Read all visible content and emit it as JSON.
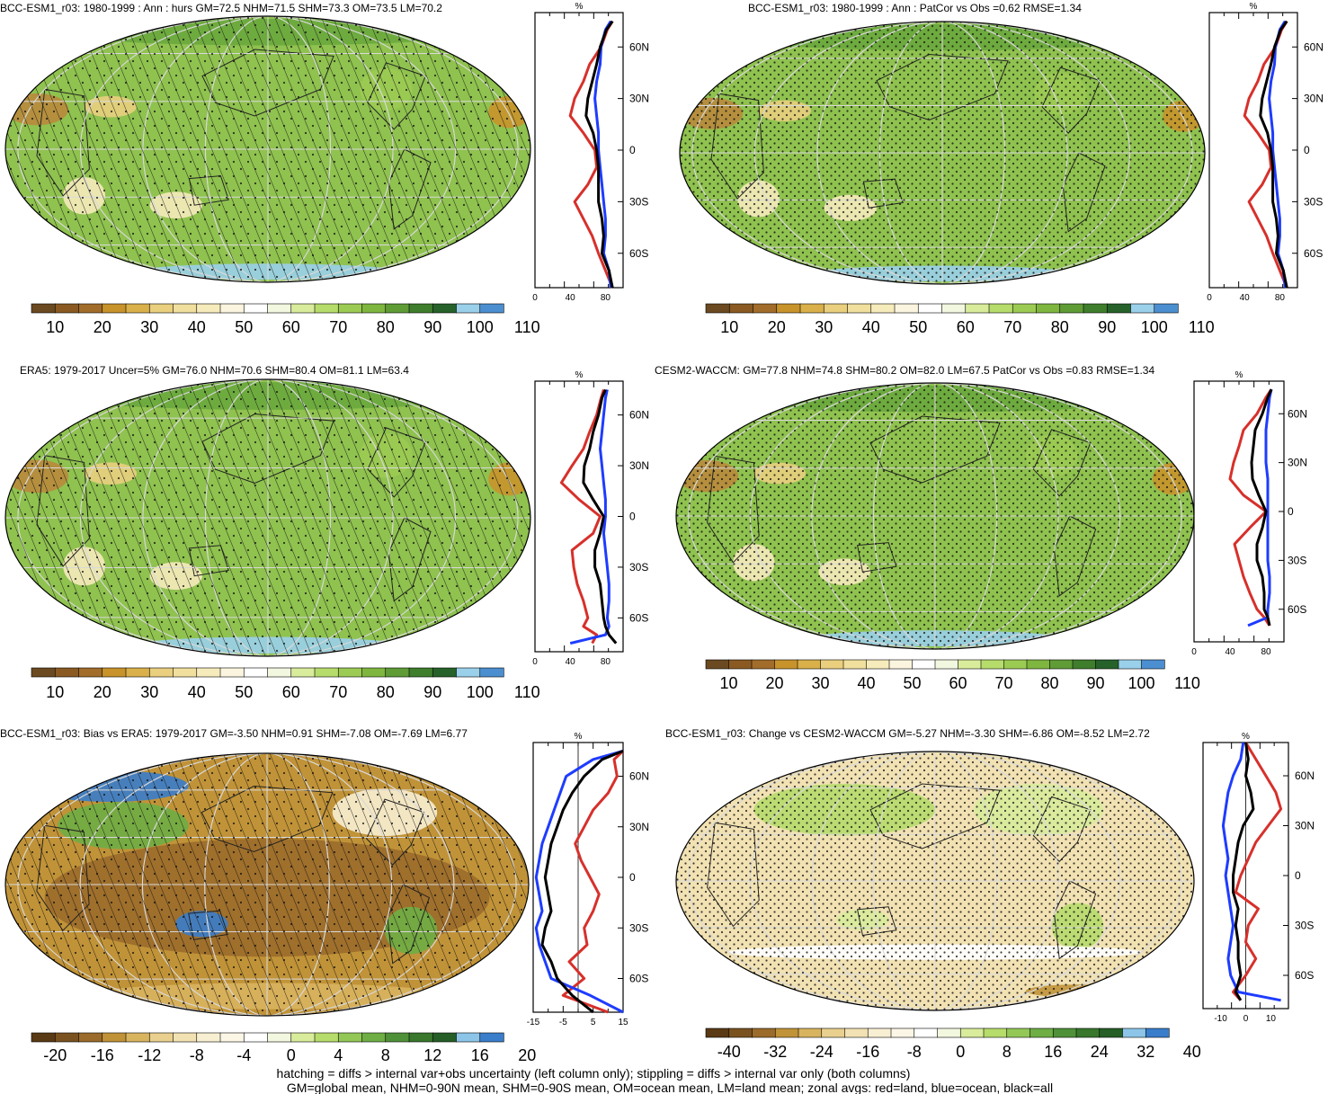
{
  "colors": {
    "land": "#d7302b",
    "ocean": "#1e3cff",
    "all": "#000000",
    "hatch": "#111111",
    "grid": "#d9d9d9",
    "scale_mean": [
      "#6b4a21",
      "#8a5a22",
      "#a26d2a",
      "#c8932b",
      "#d9b04a",
      "#e9cf7e",
      "#f1df9e",
      "#f6ebbb",
      "#fbf5df",
      "#ffffff",
      "#f2f7df",
      "#d8ec9b",
      "#b6dc6b",
      "#9ccb53",
      "#7fb63f",
      "#5f9c36",
      "#3f7e2c",
      "#26622a",
      "#9ad0ea",
      "#4c8fd0"
    ],
    "scale_diff": [
      "#5a3a14",
      "#7a5220",
      "#9b6b2b",
      "#c19338",
      "#d9b45f",
      "#e9d08e",
      "#f2e2b3",
      "#f8efd3",
      "#fbf6e6",
      "#ffffff",
      "#f2f7df",
      "#d8ec9b",
      "#b6dc6b",
      "#93c857",
      "#6eae45",
      "#4f9138",
      "#38772c",
      "#255e26",
      "#8cc5e8",
      "#3a7dcb"
    ]
  },
  "panels": [
    {
      "title": "BCC-ESM1_r03: 1980-1999 : Ann : hurs GM=72.5 NHM=71.5 SHM=73.3 OM=73.5 LM=70.2",
      "colorbar_labels": [
        "10",
        "20",
        "30",
        "40",
        "50",
        "60",
        "70",
        "80",
        "90",
        "100",
        "110"
      ],
      "scale": "mean",
      "field": "mean",
      "hatch": true,
      "stipple": "light"
    },
    {
      "title": "BCC-ESM1_r03: 1980-1999 : Ann : PatCor vs Obs =0.62 RMSE=1.34",
      "colorbar_labels": [
        "10",
        "20",
        "30",
        "40",
        "50",
        "60",
        "70",
        "80",
        "90",
        "100",
        "110"
      ],
      "scale": "mean",
      "field": "mean",
      "hatch": false,
      "stipple": "dense"
    },
    {
      "title": "ERA5: 1979-2017 Uncer=5% GM=76.0 NHM=70.6 SHM=80.4 OM=81.1 LM=63.4",
      "colorbar_labels": [
        "10",
        "20",
        "30",
        "40",
        "50",
        "60",
        "70",
        "80",
        "90",
        "100",
        "110"
      ],
      "scale": "mean",
      "field": "mean",
      "hatch": true,
      "stipple": "light"
    },
    {
      "title": "CESM2-WACCM: GM=77.8 NHM=74.8 SHM=80.2 OM=82.0 LM=67.5 PatCor vs Obs =0.83 RMSE=1.34",
      "colorbar_labels": [
        "10",
        "20",
        "30",
        "40",
        "50",
        "60",
        "70",
        "80",
        "90",
        "100",
        "110"
      ],
      "scale": "mean",
      "field": "mean",
      "hatch": false,
      "stipple": "dense"
    },
    {
      "title": "BCC-ESM1_r03: Bias vs ERA5: 1979-2017 GM=-3.50 NHM=0.91 SHM=-7.08 OM=-7.69 LM=6.77",
      "colorbar_labels": [
        "-20",
        "-16",
        "-12",
        "-8",
        "-4",
        "0",
        "4",
        "8",
        "12",
        "16",
        "20"
      ],
      "scale": "diff",
      "field": "bias",
      "hatch": true,
      "stipple": "light"
    },
    {
      "title": "BCC-ESM1_r03: Change vs CESM2-WACCM GM=-5.27 NHM=-3.30 SHM=-6.86 OM=-8.52 LM=2.72",
      "colorbar_labels": [
        "-40",
        "-32",
        "-24",
        "-16",
        "-8",
        "0",
        "8",
        "16",
        "24",
        "32",
        "40"
      ],
      "scale": "diff",
      "field": "change",
      "hatch": false,
      "stipple": "dense"
    }
  ],
  "chart_data": [
    {
      "type": "line",
      "xlabel": "%",
      "x_ticks": [
        "0",
        "40",
        "80"
      ],
      "xlim": [
        0,
        100
      ],
      "y_ticks": [
        "60N",
        "30N",
        "0",
        "30S",
        "60S"
      ],
      "ylim": [
        -80,
        80
      ],
      "series": [
        {
          "color": "#d7302b",
          "lat": [
            75,
            70,
            60,
            50,
            40,
            30,
            20,
            10,
            0,
            -10,
            -20,
            -30,
            -40,
            -50,
            -60,
            -70,
            -80
          ],
          "values": [
            88,
            82,
            75,
            62,
            55,
            45,
            40,
            55,
            68,
            70,
            60,
            45,
            55,
            65,
            72,
            80,
            88
          ]
        },
        {
          "color": "#1e3cff",
          "lat": [
            75,
            70,
            60,
            50,
            40,
            30,
            20,
            10,
            0,
            -10,
            -20,
            -30,
            -40,
            -50,
            -60,
            -70,
            -80
          ],
          "values": [
            86,
            80,
            75,
            74,
            70,
            68,
            70,
            72,
            72,
            74,
            76,
            78,
            80,
            80,
            78,
            84,
            86
          ]
        },
        {
          "color": "#000000",
          "lat": [
            75,
            70,
            60,
            50,
            40,
            30,
            20,
            10,
            0,
            -10,
            -20,
            -30,
            -40,
            -50,
            -60,
            -70,
            -80
          ],
          "values": [
            88,
            81,
            74,
            70,
            65,
            60,
            58,
            66,
            70,
            72,
            72,
            72,
            76,
            78,
            76,
            84,
            88
          ]
        }
      ]
    },
    {
      "type": "line",
      "xlabel": "%",
      "x_ticks": [
        "0",
        "40",
        "80"
      ],
      "xlim": [
        0,
        100
      ],
      "y_ticks": [
        "60N",
        "30N",
        "0",
        "30S",
        "60S"
      ],
      "ylim": [
        -80,
        80
      ],
      "series": [
        {
          "color": "#d7302b",
          "lat": [
            75,
            70,
            60,
            50,
            40,
            30,
            20,
            10,
            0,
            -10,
            -20,
            -30,
            -40,
            -50,
            -60,
            -70,
            -80
          ],
          "values": [
            88,
            82,
            75,
            62,
            55,
            45,
            40,
            55,
            68,
            70,
            60,
            45,
            55,
            65,
            72,
            80,
            88
          ]
        },
        {
          "color": "#1e3cff",
          "lat": [
            75,
            70,
            60,
            50,
            40,
            30,
            20,
            10,
            0,
            -10,
            -20,
            -30,
            -40,
            -50,
            -60,
            -70,
            -80
          ],
          "values": [
            86,
            80,
            75,
            74,
            70,
            68,
            70,
            72,
            72,
            74,
            76,
            78,
            80,
            80,
            78,
            84,
            86
          ]
        },
        {
          "color": "#000000",
          "lat": [
            75,
            70,
            60,
            50,
            40,
            30,
            20,
            10,
            0,
            -10,
            -20,
            -30,
            -40,
            -50,
            -60,
            -70,
            -80
          ],
          "values": [
            88,
            81,
            74,
            70,
            65,
            60,
            58,
            66,
            70,
            72,
            72,
            72,
            76,
            78,
            76,
            84,
            88
          ]
        }
      ]
    },
    {
      "type": "line",
      "xlabel": "%",
      "x_ticks": [
        "0",
        "40",
        "80"
      ],
      "xlim": [
        0,
        100
      ],
      "y_ticks": [
        "60N",
        "30N",
        "0",
        "30S",
        "60S"
      ],
      "ylim": [
        -80,
        80
      ],
      "series": [
        {
          "color": "#d7302b",
          "lat": [
            75,
            70,
            60,
            50,
            40,
            30,
            20,
            10,
            0,
            -10,
            -20,
            -30,
            -40,
            -50,
            -60,
            -65,
            -70,
            -75
          ],
          "values": [
            78,
            75,
            70,
            62,
            55,
            42,
            30,
            50,
            74,
            66,
            42,
            44,
            48,
            55,
            60,
            55,
            70,
            65
          ]
        },
        {
          "color": "#1e3cff",
          "lat": [
            75,
            70,
            60,
            50,
            40,
            30,
            20,
            10,
            0,
            -10,
            -20,
            -30,
            -40,
            -50,
            -60,
            -65,
            -70,
            -75
          ],
          "values": [
            82,
            80,
            78,
            76,
            74,
            76,
            78,
            80,
            80,
            78,
            80,
            82,
            84,
            84,
            82,
            84,
            80,
            40
          ]
        },
        {
          "color": "#000000",
          "lat": [
            75,
            70,
            60,
            50,
            40,
            30,
            20,
            10,
            0,
            -10,
            -20,
            -30,
            -40,
            -50,
            -60,
            -65,
            -70,
            -75
          ],
          "values": [
            80,
            76,
            72,
            66,
            62,
            56,
            55,
            66,
            78,
            74,
            68,
            68,
            74,
            76,
            78,
            80,
            84,
            92
          ]
        }
      ]
    },
    {
      "type": "line",
      "xlabel": "%",
      "x_ticks": [
        "0",
        "40",
        "80"
      ],
      "xlim": [
        0,
        100
      ],
      "y_ticks": [
        "60N",
        "30N",
        "0",
        "30S",
        "60S"
      ],
      "ylim": [
        -80,
        80
      ],
      "series": [
        {
          "color": "#d7302b",
          "lat": [
            75,
            70,
            60,
            50,
            40,
            30,
            20,
            10,
            0,
            -10,
            -20,
            -30,
            -40,
            -50,
            -60,
            -65,
            -70
          ],
          "values": [
            86,
            80,
            70,
            55,
            50,
            44,
            40,
            55,
            80,
            62,
            45,
            50,
            55,
            62,
            70,
            78,
            84
          ]
        },
        {
          "color": "#1e3cff",
          "lat": [
            75,
            70,
            60,
            50,
            40,
            30,
            20,
            10,
            0,
            -10,
            -20,
            -30,
            -40,
            -50,
            -60,
            -65,
            -70
          ],
          "values": [
            86,
            84,
            82,
            80,
            80,
            80,
            82,
            82,
            82,
            82,
            82,
            82,
            84,
            84,
            82,
            82,
            60
          ]
        },
        {
          "color": "#000000",
          "lat": [
            75,
            70,
            60,
            50,
            40,
            30,
            20,
            10,
            0,
            -10,
            -20,
            -30,
            -40,
            -50,
            -60,
            -65,
            -70
          ],
          "values": [
            86,
            82,
            76,
            68,
            66,
            64,
            65,
            72,
            80,
            76,
            70,
            70,
            76,
            78,
            78,
            82,
            84
          ]
        }
      ]
    },
    {
      "type": "line",
      "xlabel": "%",
      "x_ticks": [
        "-15",
        "-5",
        "5",
        "15"
      ],
      "xlim": [
        -15,
        15
      ],
      "y_ticks": [
        "60N",
        "30N",
        "0",
        "30S",
        "60S"
      ],
      "ylim": [
        -80,
        80
      ],
      "series": [
        {
          "color": "#d7302b",
          "lat": [
            75,
            70,
            60,
            50,
            40,
            30,
            20,
            10,
            0,
            -10,
            -20,
            -30,
            -40,
            -50,
            -60,
            -70,
            -80
          ],
          "values": [
            15,
            12,
            13,
            10,
            5,
            2,
            -1,
            1,
            4,
            7,
            5,
            2,
            3,
            -3,
            2,
            -5,
            10
          ]
        },
        {
          "color": "#1e3cff",
          "lat": [
            75,
            70,
            60,
            50,
            40,
            30,
            20,
            10,
            0,
            -10,
            -20,
            -30,
            -40,
            -50,
            -60,
            -70,
            -80
          ],
          "values": [
            15,
            5,
            -4,
            -6,
            -8,
            -10,
            -12,
            -13,
            -14,
            -13,
            -12,
            -14,
            -13,
            -11,
            -9,
            4,
            15
          ]
        },
        {
          "color": "#000000",
          "lat": [
            75,
            70,
            60,
            50,
            40,
            30,
            20,
            10,
            0,
            -10,
            -20,
            -30,
            -40,
            -50,
            -60,
            -70,
            -80
          ],
          "values": [
            15,
            8,
            2,
            -2,
            -5,
            -7,
            -9,
            -10,
            -11,
            -10,
            -9,
            -11,
            -12,
            -9,
            -7,
            -2,
            5
          ]
        }
      ]
    },
    {
      "type": "line",
      "xlabel": "%",
      "x_ticks": [
        "-10",
        "0",
        "10"
      ],
      "xlim": [
        -17,
        17
      ],
      "y_ticks": [
        "60N",
        "30N",
        "0",
        "30S",
        "60S"
      ],
      "ylim": [
        -80,
        80
      ],
      "series": [
        {
          "color": "#d7302b",
          "lat": [
            80,
            70,
            60,
            50,
            40,
            30,
            20,
            10,
            0,
            -10,
            -20,
            -30,
            -40,
            -50,
            -60,
            -70,
            -75
          ],
          "values": [
            0,
            4,
            8,
            12,
            14,
            9,
            4,
            1,
            -2,
            -4,
            5,
            1,
            0,
            4,
            0,
            -5,
            -2
          ]
        },
        {
          "color": "#1e3cff",
          "lat": [
            80,
            70,
            60,
            50,
            40,
            30,
            20,
            10,
            0,
            -10,
            -20,
            -30,
            -40,
            -50,
            -60,
            -70,
            -75
          ],
          "values": [
            -1,
            -2,
            -5,
            -7,
            -8,
            -9,
            -8,
            -7,
            -8,
            -7,
            -6,
            -5,
            -6,
            -7,
            -6,
            -3,
            14
          ]
        },
        {
          "color": "#000000",
          "lat": [
            80,
            70,
            60,
            50,
            40,
            30,
            20,
            10,
            0,
            -10,
            -20,
            -30,
            -40,
            -50,
            -60,
            -70,
            -75
          ],
          "values": [
            0,
            1,
            0,
            2,
            3,
            -1,
            -3,
            -4,
            -5,
            -5,
            -3,
            -4,
            -3,
            -3,
            -2,
            -4,
            -2
          ]
        }
      ]
    }
  ],
  "footer": {
    "line1": "hatching = diffs > internal var+obs uncertainty (left column only); stippling = diffs > internal var only (both columns)",
    "line2": "GM=global mean, NHM=0-90N mean, SHM=0-90S mean, OM=ocean mean, LM=land mean; zonal avgs: red=land, blue=ocean, black=all"
  }
}
